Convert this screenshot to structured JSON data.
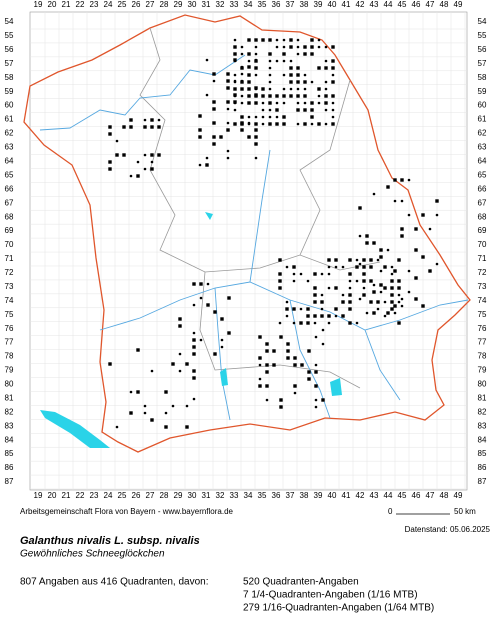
{
  "grid": {
    "x_labels": [
      19,
      20,
      21,
      22,
      23,
      24,
      25,
      26,
      27,
      28,
      29,
      30,
      31,
      32,
      33,
      34,
      35,
      36,
      37,
      38,
      39,
      40,
      41,
      42,
      43,
      44,
      45,
      46,
      47,
      48,
      49
    ],
    "y_labels": [
      54,
      55,
      56,
      57,
      58,
      59,
      60,
      61,
      62,
      63,
      64,
      65,
      66,
      67,
      68,
      69,
      70,
      71,
      72,
      73,
      74,
      75,
      76,
      77,
      78,
      79,
      80,
      81,
      82,
      83,
      84,
      85,
      86,
      87
    ]
  },
  "scale": {
    "start": "0",
    "end": "50 km"
  },
  "credit": "Arbeitsgemeinschaft Flora von Bayern - www.bayernflora.de",
  "date": "Datenstand: 05.06.2025",
  "species": {
    "name": "Galanthus nivalis L. subsp. nivalis",
    "common": "Gewöhnliches Schneeglöckchen"
  },
  "summary": {
    "total": "807 Angaben aus 416 Quadranten, davon:",
    "breakdown": [
      "520 Quadranten-Angaben",
      "7 1/4-Quadranten-Angaben (1/16 MTB)",
      "279 1/16-Quadranten-Angaben (1/64 MTB)"
    ]
  }
}
